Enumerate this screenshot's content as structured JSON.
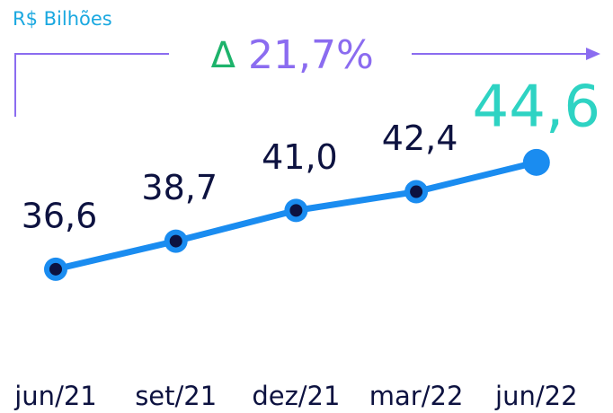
{
  "chart_data": {
    "type": "line",
    "unit_label": "R$ Bilhões",
    "annotation_symbol": "Δ",
    "annotation": "21,7%",
    "categories": [
      "jun/21",
      "set/21",
      "dez/21",
      "mar/22",
      "jun/22"
    ],
    "values": [
      36.6,
      38.7,
      41.0,
      42.4,
      44.6
    ],
    "value_labels": [
      "36,6",
      "38,7",
      "41,0",
      "42,4",
      "44,6"
    ],
    "color": "#1a8cf0",
    "highlight_color": "#2ed3c3",
    "ylim": [
      30,
      46
    ]
  }
}
